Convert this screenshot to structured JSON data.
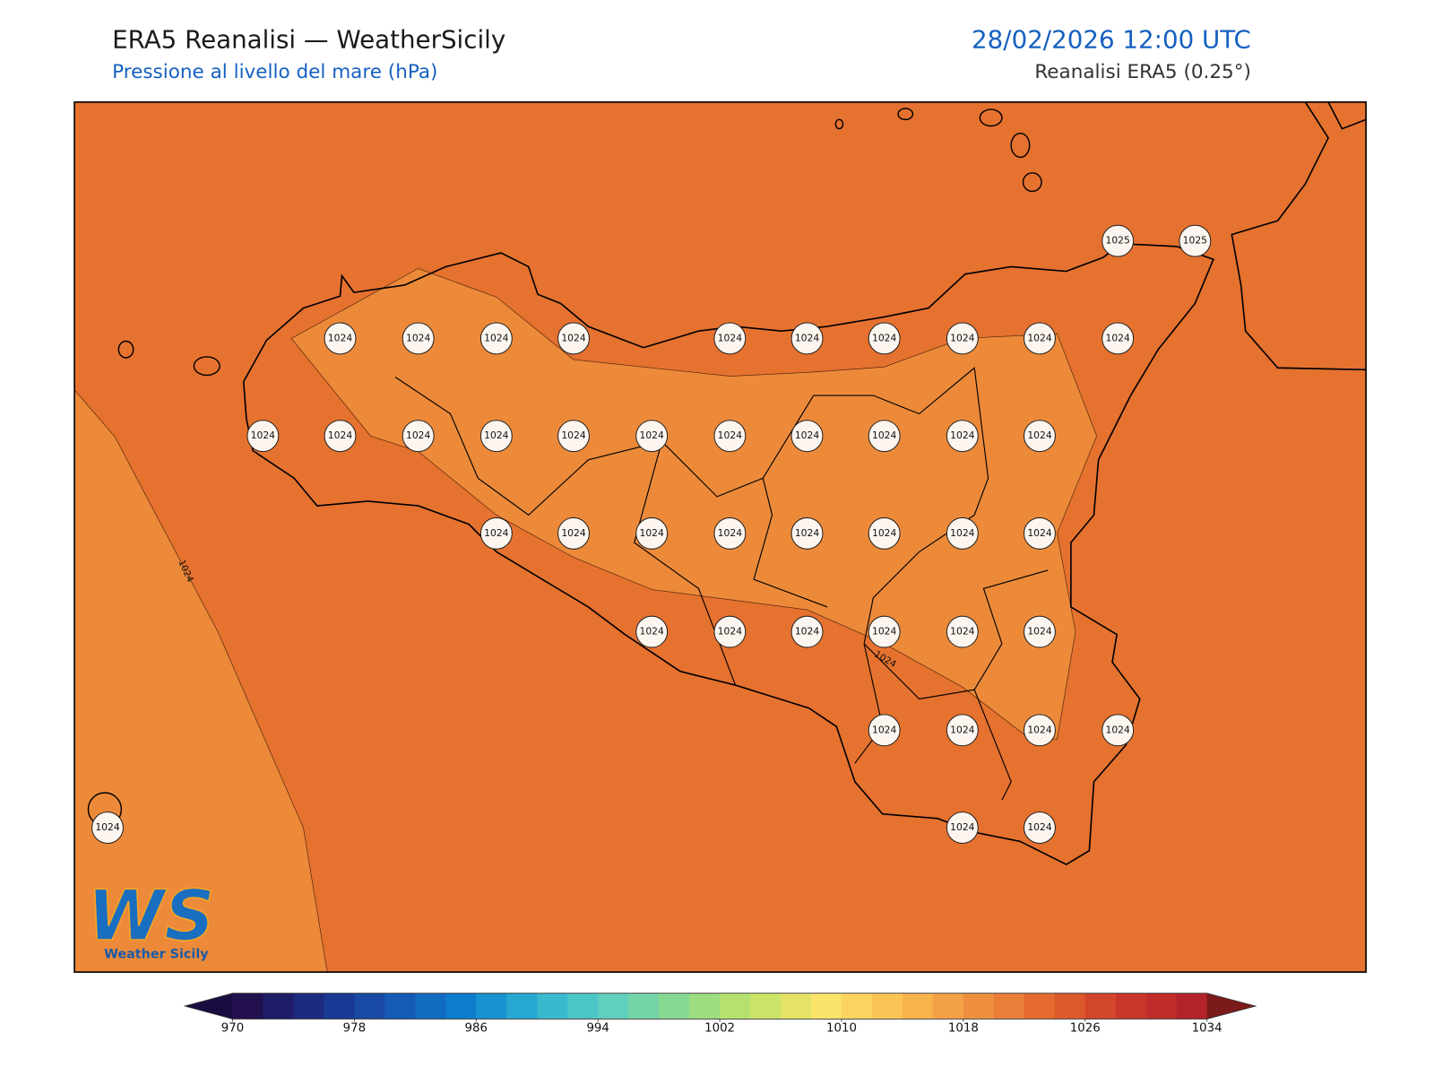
{
  "header": {
    "title": "ERA5 Reanalisi — WeatherSicily",
    "subtitle": "Pressione al livello del mare (hPa)",
    "datetime": "28/02/2026 12:00 UTC",
    "source": "Reanalisi ERA5 (0.25°)"
  },
  "stations": [
    1025,
    1025,
    1024,
    1024,
    1024,
    1024,
    1024,
    1024,
    1024,
    1024,
    1024,
    1024,
    1024,
    1024,
    1024,
    1024,
    1024,
    1024,
    1024,
    1024,
    1024,
    1024,
    1024,
    1024,
    1024,
    1024,
    1024,
    1024,
    1024,
    1024,
    1024,
    1024,
    1024,
    1024,
    1024,
    1024,
    1024,
    1024,
    1024,
    1024,
    1024,
    1024,
    1024,
    1024
  ],
  "contour_labels": [
    1024,
    1024
  ],
  "colorbar": {
    "ticks": [
      970,
      978,
      986,
      994,
      1002,
      1010,
      1018,
      1026,
      1034
    ]
  },
  "logo": {
    "mark": "WS",
    "text": "Weather Sicily"
  }
}
